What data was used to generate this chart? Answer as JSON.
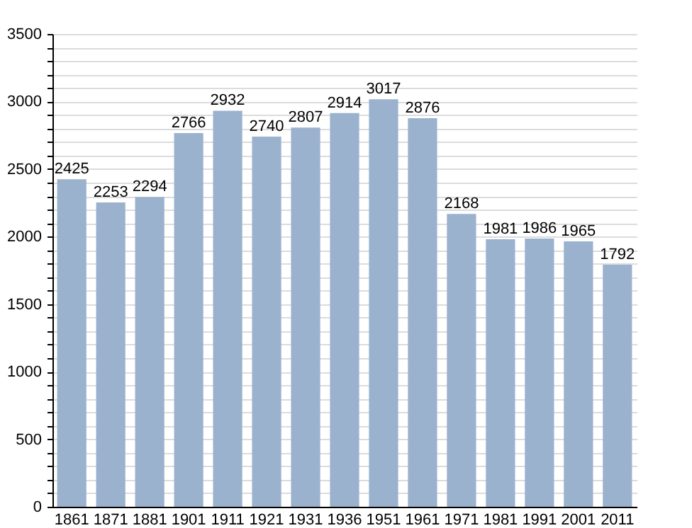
{
  "chart_data": {
    "type": "bar",
    "categories": [
      "1861",
      "1871",
      "1881",
      "1901",
      "1911",
      "1921",
      "1931",
      "1936",
      "1951",
      "1961",
      "1971",
      "1981",
      "1991",
      "2001",
      "2011"
    ],
    "values": [
      2425,
      2253,
      2294,
      2766,
      2932,
      2740,
      2807,
      2914,
      3017,
      2876,
      2168,
      1981,
      1986,
      1965,
      1792
    ],
    "color": "#9bb2cf",
    "ylim": [
      0,
      3500
    ],
    "yticks": [
      0,
      {
        "value": 100,
        "label": null
      },
      {
        "value": 200,
        "label": null
      },
      {
        "value": 300,
        "label": null
      },
      {
        "value": 400,
        "label": null
      },
      500,
      {
        "value": 600,
        "label": null
      },
      {
        "value": 700,
        "label": null
      },
      {
        "value": 800,
        "label": null
      },
      {
        "value": 900,
        "label": null
      },
      1000,
      {
        "value": 1100,
        "label": null
      },
      {
        "value": 1200,
        "label": null
      },
      {
        "value": 1300,
        "label": null
      },
      {
        "value": 1400,
        "label": null
      },
      1500,
      {
        "value": 1600,
        "label": null
      },
      {
        "value": 1700,
        "label": null
      },
      {
        "value": 1800,
        "label": null
      },
      {
        "value": 1900,
        "label": null
      },
      2000,
      {
        "value": 2100,
        "label": null
      },
      {
        "value": 2200,
        "label": null
      },
      {
        "value": 2300,
        "label": null
      },
      {
        "value": 2400,
        "label": null
      },
      2500,
      {
        "value": 2600,
        "label": null
      },
      {
        "value": 2700,
        "label": null
      },
      {
        "value": 2800,
        "label": null
      },
      {
        "value": 2900,
        "label": null
      },
      3000,
      {
        "value": 3100,
        "label": null
      },
      {
        "value": 3200,
        "label": null
      },
      {
        "value": 3300,
        "label": null
      },
      {
        "value": 3400,
        "label": null
      },
      3500
    ],
    "grid": true,
    "data_labels": true
  }
}
